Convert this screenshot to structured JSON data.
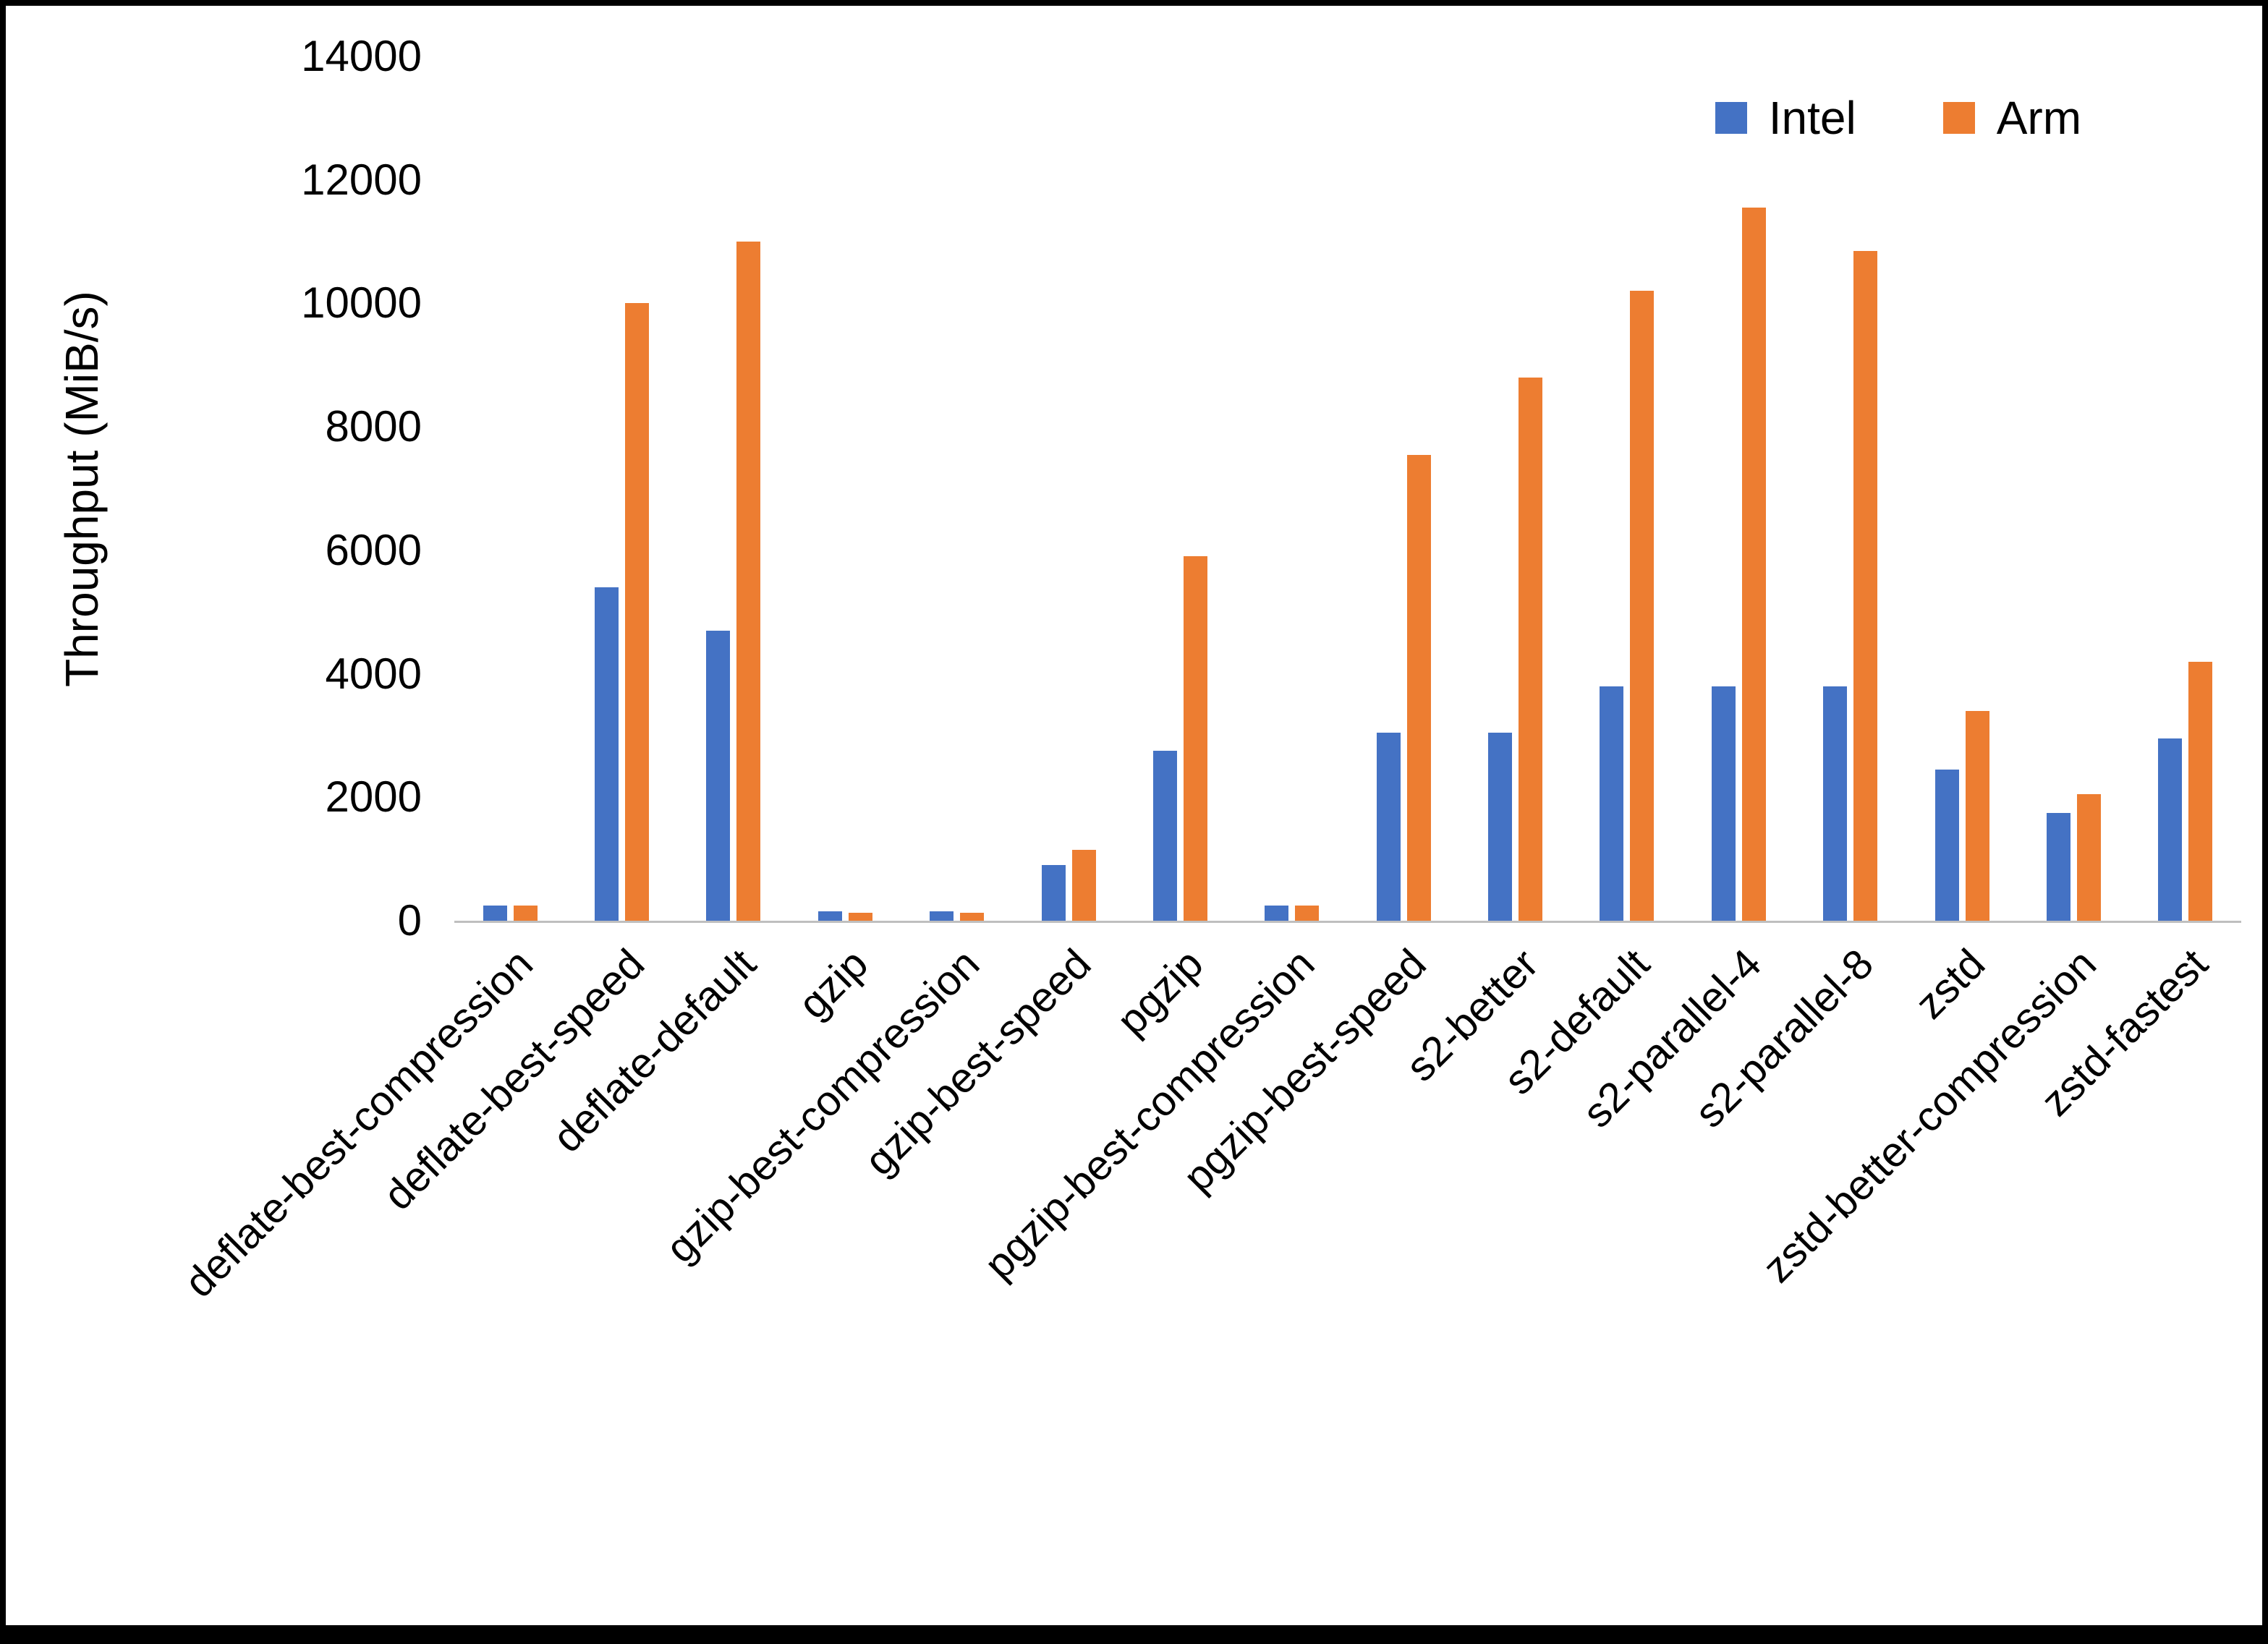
{
  "chart_data": {
    "type": "bar",
    "title": "",
    "xlabel": "",
    "ylabel": "Throughput (MiB/s)",
    "ylim": [
      0,
      14000
    ],
    "ytick_step": 2000,
    "ytick_labels": [
      "0",
      "2000",
      "4000",
      "6000",
      "8000",
      "10000",
      "12000",
      "14000"
    ],
    "grid": false,
    "legend_position": "top-right",
    "categories": [
      "deflate-best-compression",
      "deflate-best-speed",
      "deflate-default",
      "gzip",
      "gzip-best-compression",
      "gzip-best-speed",
      "pgzip",
      "pgzip-best-compression",
      "pgzip-best-speed",
      "s2-better",
      "s2-default",
      "s2-parallel-4",
      "s2-parallel-8",
      "zstd",
      "zstd-better-compression",
      "zstd-fastest"
    ],
    "series": [
      {
        "name": "Intel",
        "color": "#4472C4",
        "values": [
          250,
          5400,
          4700,
          150,
          150,
          900,
          2750,
          250,
          3050,
          3050,
          3800,
          3800,
          3800,
          2450,
          1750,
          2950
        ]
      },
      {
        "name": "Arm",
        "color": "#ED7D31",
        "values": [
          250,
          10000,
          11000,
          130,
          130,
          1150,
          5900,
          250,
          7550,
          8800,
          10200,
          11550,
          10850,
          3400,
          2050,
          4200
        ]
      }
    ]
  }
}
